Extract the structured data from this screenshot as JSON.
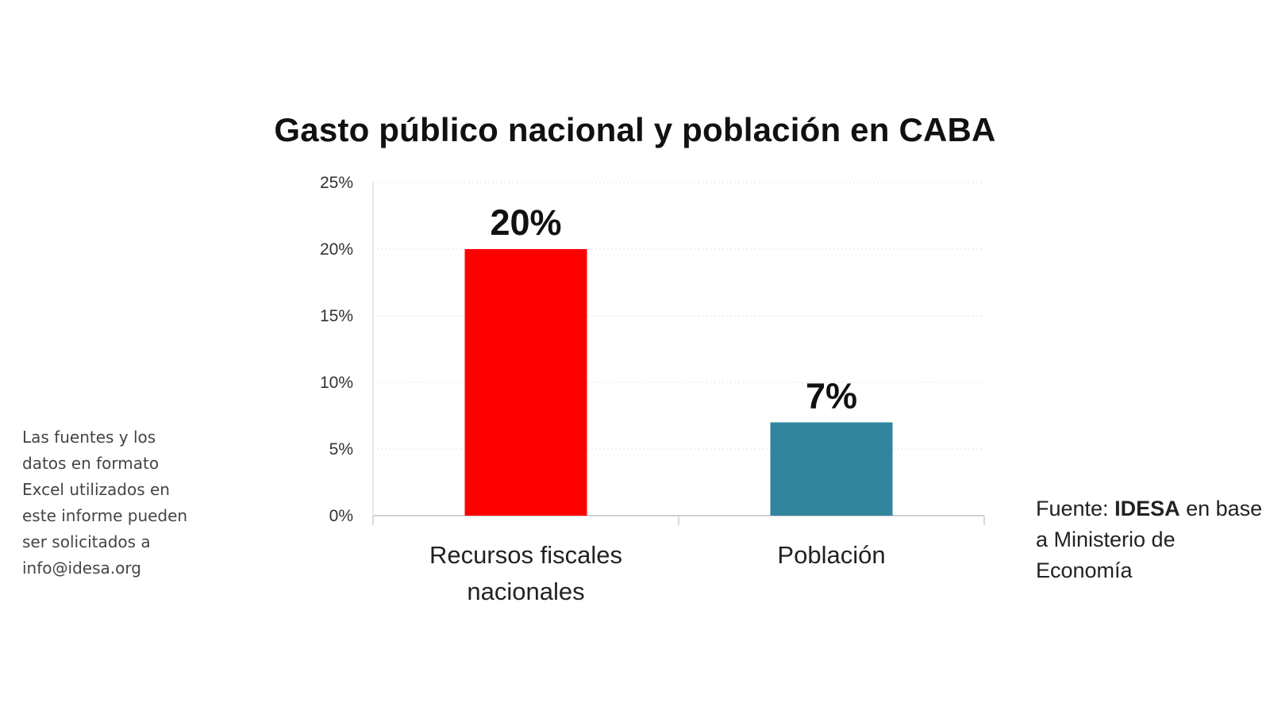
{
  "chart_data": {
    "type": "bar",
    "title": "Gasto público nacional y población en CABA",
    "categories": [
      "Recursos fiscales nacionales",
      "Población"
    ],
    "category_lines": [
      [
        "Recursos fiscales",
        "nacionales"
      ],
      [
        "Población"
      ]
    ],
    "values": [
      20,
      7
    ],
    "data_labels": [
      "20%",
      "7%"
    ],
    "bar_colors": [
      "#ff0000",
      "#31859c"
    ],
    "yticks": [
      "0%",
      "5%",
      "10%",
      "15%",
      "20%",
      "25%"
    ],
    "ylim": [
      0,
      25
    ],
    "xlabel": "",
    "ylabel": "",
    "grid": true,
    "legend": "none"
  },
  "notes": {
    "side_note": "Las fuentes y los\ndatos en formato\nExcel utilizados en\neste informe pueden\nser solicitados a\ninfo@idesa.org",
    "source_prefix": "Fuente: ",
    "source_org": "IDESA",
    "source_line1_rest": " en base",
    "source_line2": "a Ministerio de",
    "source_line3": "Economía"
  }
}
